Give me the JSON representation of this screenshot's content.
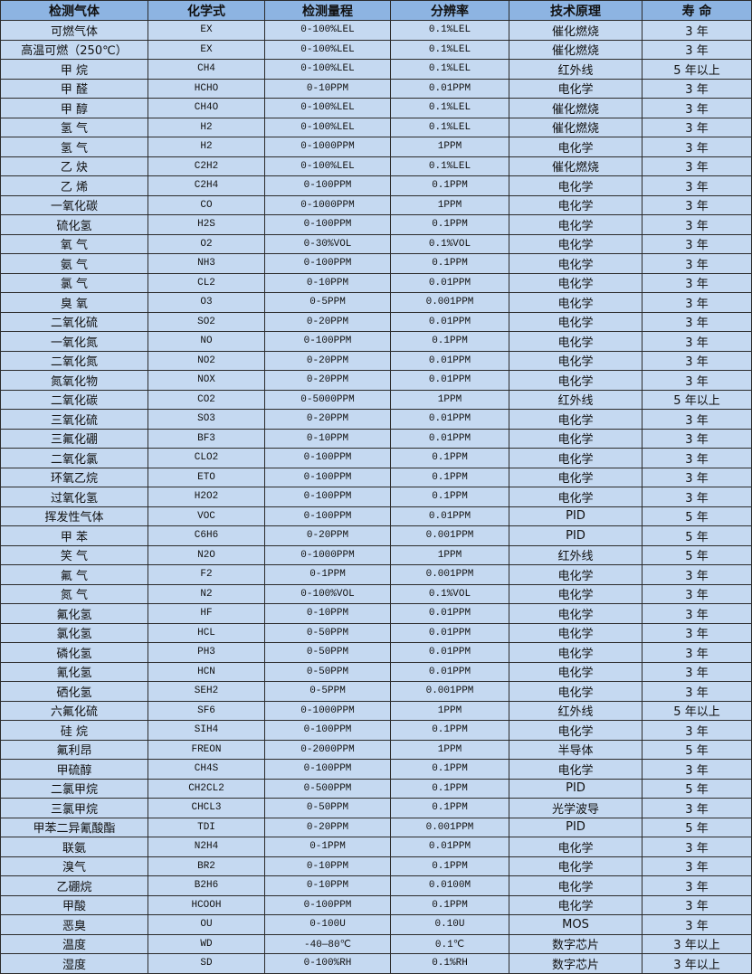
{
  "colors": {
    "header_bg": "#8db4e2",
    "row_bg": "#c5d9f1",
    "border": "#2b2b2b"
  },
  "headers": [
    "检测气体",
    "化学式",
    "检测量程",
    "分辨率",
    "技术原理",
    "寿 命"
  ],
  "rows": [
    [
      "可燃气体",
      "EX",
      "0-100%LEL",
      "0.1%LEL",
      "催化燃烧",
      "3 年"
    ],
    [
      "高温可燃（250℃）",
      "EX",
      "0-100%LEL",
      "0.1%LEL",
      "催化燃烧",
      "3 年"
    ],
    [
      "甲 烷",
      "CH4",
      "0-100%LEL",
      "0.1%LEL",
      "红外线",
      "5 年以上"
    ],
    [
      "甲 醛",
      "HCHO",
      "0-10PPM",
      "0.01PPM",
      "电化学",
      "3 年"
    ],
    [
      "甲 醇",
      "CH4O",
      "0-100%LEL",
      "0.1%LEL",
      "催化燃烧",
      "3 年"
    ],
    [
      "氢 气",
      "H2",
      "0-100%LEL",
      "0.1%LEL",
      "催化燃烧",
      "3 年"
    ],
    [
      "氢 气",
      "H2",
      "0-1000PPM",
      "1PPM",
      "电化学",
      "3 年"
    ],
    [
      "乙 炔",
      "C2H2",
      "0-100%LEL",
      "0.1%LEL",
      "催化燃烧",
      "3 年"
    ],
    [
      "乙 烯",
      "C2H4",
      "0-100PPM",
      "0.1PPM",
      "电化学",
      "3 年"
    ],
    [
      "一氧化碳",
      "CO",
      "0-1000PPM",
      "1PPM",
      "电化学",
      "3 年"
    ],
    [
      "硫化氢",
      "H2S",
      "0-100PPM",
      "0.1PPM",
      "电化学",
      "3 年"
    ],
    [
      "氧 气",
      "O2",
      "0-30%VOL",
      "0.1%VOL",
      "电化学",
      "3 年"
    ],
    [
      "氨 气",
      "NH3",
      "0-100PPM",
      "0.1PPM",
      "电化学",
      "3 年"
    ],
    [
      "氯 气",
      "CL2",
      "0-10PPM",
      "0.01PPM",
      "电化学",
      "3 年"
    ],
    [
      "臭 氧",
      "O3",
      "0-5PPM",
      "0.001PPM",
      "电化学",
      "3 年"
    ],
    [
      "二氧化硫",
      "SO2",
      "0-20PPM",
      "0.01PPM",
      "电化学",
      "3 年"
    ],
    [
      "一氧化氮",
      "NO",
      "0-100PPM",
      "0.1PPM",
      "电化学",
      "3 年"
    ],
    [
      "二氧化氮",
      "NO2",
      "0-20PPM",
      "0.01PPM",
      "电化学",
      "3 年"
    ],
    [
      "氮氧化物",
      "NOX",
      "0-20PPM",
      "0.01PPM",
      "电化学",
      "3 年"
    ],
    [
      "二氧化碳",
      "CO2",
      "0-5000PPM",
      "1PPM",
      "红外线",
      "5 年以上"
    ],
    [
      "三氧化硫",
      "SO3",
      "0-20PPM",
      "0.01PPM",
      "电化学",
      "3 年"
    ],
    [
      "三氟化硼",
      "BF3",
      "0-10PPM",
      "0.01PPM",
      "电化学",
      "3 年"
    ],
    [
      "二氧化氯",
      "CLO2",
      "0-100PPM",
      "0.1PPM",
      "电化学",
      "3 年"
    ],
    [
      "环氧乙烷",
      "ETO",
      "0-100PPM",
      "0.1PPM",
      "电化学",
      "3 年"
    ],
    [
      "过氧化氢",
      "H2O2",
      "0-100PPM",
      "0.1PPM",
      "电化学",
      "3 年"
    ],
    [
      "挥发性气体",
      "VOC",
      "0-100PPM",
      "0.01PPM",
      "PID",
      "5 年"
    ],
    [
      "甲 苯",
      "C6H6",
      "0-20PPM",
      "0.001PPM",
      "PID",
      "5 年"
    ],
    [
      "笑 气",
      "N2O",
      "0-1000PPM",
      "1PPM",
      "红外线",
      "5 年"
    ],
    [
      "氟 气",
      "F2",
      "0-1PPM",
      "0.001PPM",
      "电化学",
      "3 年"
    ],
    [
      "氮 气",
      "N2",
      "0-100%VOL",
      "0.1%VOL",
      "电化学",
      "3 年"
    ],
    [
      "氟化氢",
      "HF",
      "0-10PPM",
      "0.01PPM",
      "电化学",
      "3 年"
    ],
    [
      "氯化氢",
      "HCL",
      "0-50PPM",
      "0.01PPM",
      "电化学",
      "3 年"
    ],
    [
      "磷化氢",
      "PH3",
      "0-50PPM",
      "0.01PPM",
      "电化学",
      "3 年"
    ],
    [
      "氰化氢",
      "HCN",
      "0-50PPM",
      "0.01PPM",
      "电化学",
      "3 年"
    ],
    [
      "硒化氢",
      "SEH2",
      "0-5PPM",
      "0.001PPM",
      "电化学",
      "3 年"
    ],
    [
      "六氟化硫",
      "SF6",
      "0-1000PPM",
      "1PPM",
      "红外线",
      "5 年以上"
    ],
    [
      "硅 烷",
      "SIH4",
      "0-100PPM",
      "0.1PPM",
      "电化学",
      "3 年"
    ],
    [
      "氟利昂",
      "FREON",
      "0-2000PPM",
      "1PPM",
      "半导体",
      "5 年"
    ],
    [
      "甲硫醇",
      "CH4S",
      "0-100PPM",
      "0.1PPM",
      "电化学",
      "3 年"
    ],
    [
      "二氯甲烷",
      "CH2CL2",
      "0-500PPM",
      "0.1PPM",
      "PID",
      "5 年"
    ],
    [
      "三氯甲烷",
      "CHCL3",
      "0-50PPM",
      "0.1PPM",
      "光学波导",
      "3 年"
    ],
    [
      "甲苯二异氰酸酯",
      "TDI",
      "0-20PPM",
      "0.001PPM",
      "PID",
      "5 年"
    ],
    [
      "联氨",
      "N2H4",
      "0-1PPM",
      "0.01PPM",
      "电化学",
      "3 年"
    ],
    [
      "溴气",
      "BR2",
      "0-10PPM",
      "0.1PPM",
      "电化学",
      "3 年"
    ],
    [
      "乙硼烷",
      "B2H6",
      "0-10PPM",
      "0.0100M",
      "电化学",
      "3 年"
    ],
    [
      "甲酸",
      "HCOOH",
      "0-100PPM",
      "0.1PPM",
      "电化学",
      "3 年"
    ],
    [
      "恶臭",
      "OU",
      "0-100U",
      "0.10U",
      "MOS",
      "3 年"
    ],
    [
      "温度",
      "WD",
      "-40—80℃",
      "0.1℃",
      "数字芯片",
      "3 年以上"
    ],
    [
      "湿度",
      "SD",
      "0-100%RH",
      "0.1%RH",
      "数字芯片",
      "3 年以上"
    ]
  ]
}
